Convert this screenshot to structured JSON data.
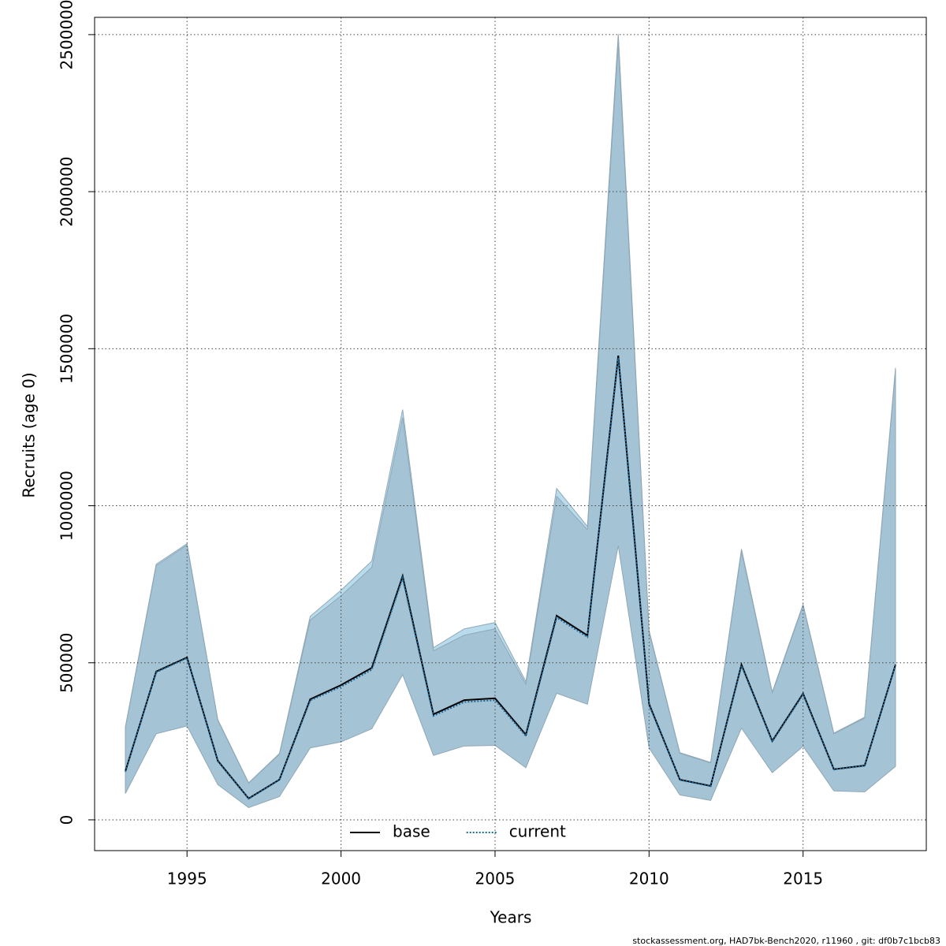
{
  "chart_data": {
    "type": "line",
    "x_label": "Years",
    "y_label": "Recruits (age 0)",
    "footnote": "stockassessment.org, HAD7bk-Bench2020, r11960 , git: df0b7c1bcb83",
    "x": [
      1993,
      1994,
      1995,
      1996,
      1997,
      1998,
      1999,
      2000,
      2001,
      2002,
      2003,
      2004,
      2005,
      2006,
      2007,
      2008,
      2009,
      2010,
      2011,
      2012,
      2013,
      2014,
      2015,
      2016,
      2017,
      2018
    ],
    "xlim": [
      1992,
      2019
    ],
    "xticks": [
      1995,
      2000,
      2005,
      2010,
      2015
    ],
    "ylim": [
      -98000,
      2555000
    ],
    "yticks": [
      0,
      500000,
      1000000,
      1500000,
      2000000,
      2500000
    ],
    "grid": true,
    "legend": "bottom",
    "series": [
      {
        "name": "base",
        "color": "#000000",
        "band_color": "#b9dced",
        "values": [
          155000,
          472000,
          517000,
          188000,
          68000,
          128000,
          384000,
          429000,
          484000,
          776000,
          336000,
          381000,
          387000,
          271000,
          650000,
          587000,
          1478000,
          369000,
          128000,
          108000,
          494000,
          251000,
          402000,
          161000,
          173000,
          494000
        ],
        "upper": [
          296000,
          814000,
          879000,
          319000,
          118000,
          211000,
          648000,
          731000,
          824000,
          1306000,
          548000,
          608000,
          628000,
          440000,
          1055000,
          934000,
          2502000,
          603000,
          214000,
          183000,
          862000,
          407000,
          686000,
          276000,
          327000,
          1439000
        ],
        "lower": [
          85000,
          276000,
          301000,
          113000,
          40000,
          75000,
          231000,
          251000,
          294000,
          467000,
          208000,
          239000,
          241000,
          168000,
          407000,
          372000,
          879000,
          231000,
          80000,
          63000,
          294000,
          151000,
          236000,
          93000,
          90000,
          171000
        ]
      },
      {
        "name": "current",
        "color": "#1b6a9c",
        "band_color": "#a4c3d4",
        "values": [
          153000,
          470000,
          515000,
          186000,
          67000,
          127000,
          380000,
          424000,
          478000,
          770000,
          331000,
          375000,
          381000,
          267000,
          644000,
          582000,
          1470000,
          366000,
          127000,
          107000,
          491000,
          249000,
          399000,
          160000,
          172000,
          492000
        ],
        "upper": [
          293000,
          809000,
          875000,
          317000,
          117000,
          209000,
          636000,
          713000,
          804000,
          1281000,
          538000,
          588000,
          608000,
          432000,
          1030000,
          924000,
          2474000,
          598000,
          212000,
          181000,
          855000,
          404000,
          682000,
          274000,
          324000,
          1430000
        ],
        "lower": [
          84000,
          274000,
          299000,
          112000,
          39000,
          74000,
          229000,
          248000,
          290000,
          462000,
          205000,
          235000,
          237000,
          166000,
          403000,
          368000,
          873000,
          229000,
          79000,
          62000,
          292000,
          150000,
          234000,
          92000,
          89000,
          170000
        ]
      }
    ]
  }
}
